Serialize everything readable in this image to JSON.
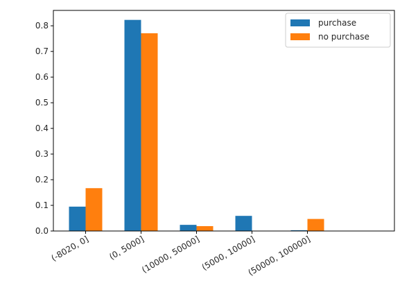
{
  "chart_data": {
    "type": "bar",
    "title": "",
    "xlabel": "",
    "ylabel": "",
    "categories": [
      "(-8020, 0]",
      "(0, 5000]",
      "(10000, 50000]",
      "(5000, 10000]",
      "(50000, 100000]"
    ],
    "series": [
      {
        "name": "purchase",
        "color": "#1f77b4",
        "values": [
          0.095,
          0.823,
          0.024,
          0.059,
          0.003
        ]
      },
      {
        "name": "no purchase",
        "color": "#ff7f0e",
        "values": [
          0.167,
          0.771,
          0.019,
          0.0,
          0.047
        ]
      }
    ],
    "ylim": [
      0,
      0.86
    ],
    "yticks": [
      0.0,
      0.1,
      0.2,
      0.3,
      0.4,
      0.5,
      0.6,
      0.7,
      0.8
    ],
    "ytick_labels": [
      "0.0",
      "0.1",
      "0.2",
      "0.3",
      "0.4",
      "0.5",
      "0.6",
      "0.7",
      "0.8"
    ],
    "grid": false,
    "legend_position": "top-right"
  }
}
